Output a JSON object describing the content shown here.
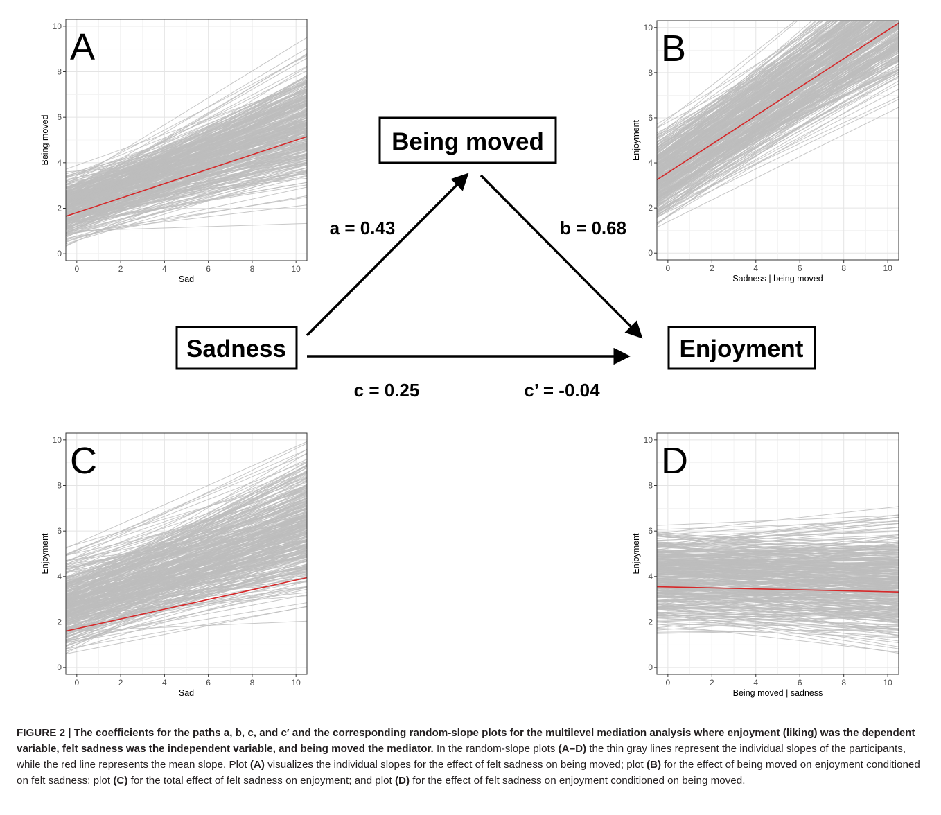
{
  "diagram": {
    "nodes": {
      "sadness": "Sadness",
      "being_moved": "Being moved",
      "enjoyment": "Enjoyment"
    },
    "paths": {
      "a": "a = 0.43",
      "b": "b = 0.68",
      "c": "c = 0.25",
      "c_prime": "c’ = -0.04"
    }
  },
  "chart_data": [
    {
      "panel": "A",
      "type": "line",
      "xlabel": "Sad",
      "ylabel": "Being moved",
      "xlim": [
        -0.5,
        10.5
      ],
      "ylim": [
        -0.3,
        10.3
      ],
      "xticks": [
        0,
        2,
        4,
        6,
        8,
        10
      ],
      "yticks": [
        0,
        2,
        4,
        6,
        8,
        10
      ],
      "grid": true,
      "mean_line": {
        "x": [
          -0.5,
          10.5
        ],
        "y": [
          1.65,
          5.15
        ],
        "color": "#d62728"
      },
      "individual_slopes": {
        "color": "#bdbdbd",
        "intercept_range": [
          0.2,
          4.0
        ],
        "slope_range": [
          -0.05,
          0.75
        ]
      }
    },
    {
      "panel": "B",
      "type": "line",
      "xlabel": "Sadness | being moved",
      "ylabel": "Enjoyment",
      "xlim": [
        -0.5,
        10.5
      ],
      "ylim": [
        -0.3,
        10.3
      ],
      "xticks": [
        0,
        2,
        4,
        6,
        8,
        10
      ],
      "yticks": [
        0,
        2,
        4,
        6,
        8,
        10
      ],
      "grid": true,
      "mean_line": {
        "x": [
          -0.5,
          10.5
        ],
        "y": [
          3.25,
          10.2
        ],
        "color": "#d62728"
      },
      "individual_slopes": {
        "color": "#bdbdbd",
        "intercept_range": [
          0.9,
          6.3
        ],
        "slope_range": [
          0.35,
          0.95
        ]
      }
    },
    {
      "panel": "C",
      "type": "line",
      "xlabel": "Sad",
      "ylabel": "Enjoyment",
      "xlim": [
        -0.5,
        10.5
      ],
      "ylim": [
        -0.3,
        10.3
      ],
      "xticks": [
        0,
        2,
        4,
        6,
        8,
        10
      ],
      "yticks": [
        0,
        2,
        4,
        6,
        8,
        10
      ],
      "grid": true,
      "mean_line": {
        "x": [
          -0.5,
          10.5
        ],
        "y": [
          1.6,
          3.95
        ],
        "color": "#d62728"
      },
      "individual_slopes": {
        "color": "#bdbdbd",
        "intercept_range": [
          0.0,
          5.8
        ],
        "slope_range": [
          -0.05,
          0.8
        ]
      }
    },
    {
      "panel": "D",
      "type": "line",
      "xlabel": "Being moved | sadness",
      "ylabel": "Enjoyment",
      "xlim": [
        -0.5,
        10.5
      ],
      "ylim": [
        -0.3,
        10.3
      ],
      "xticks": [
        0,
        2,
        4,
        6,
        8,
        10
      ],
      "yticks": [
        0,
        2,
        4,
        6,
        8,
        10
      ],
      "grid": true,
      "mean_line": {
        "x": [
          -0.5,
          10.5
        ],
        "y": [
          3.55,
          3.32
        ],
        "color": "#d62728"
      },
      "individual_slopes": {
        "color": "#bdbdbd",
        "intercept_range": [
          1.0,
          6.8
        ],
        "slope_range": [
          -0.28,
          0.22
        ]
      }
    }
  ],
  "caption": {
    "title": "FIGURE 2 | The coefficients for the paths a, b, c, and c′ and the corresponding random-slope plots for the multilevel mediation analysis where enjoyment (liking) was the dependent variable, felt sadness was the independent variable, and being moved the mediator.",
    "t1": " In the random-slope plots ",
    "r1": "(A–D)",
    "t2": " the thin gray lines represent the individual slopes of the participants, while the red line represents the mean slope. Plot ",
    "r2": "(A)",
    "t3": " visualizes the individual slopes for the effect of felt sadness on being moved; plot ",
    "r3": "(B)",
    "t4": " for the effect of being moved on enjoyment conditioned on felt sadness; plot ",
    "r4": "(C)",
    "t5": " for the total effect of felt sadness on enjoyment; and plot ",
    "r5": "(D)",
    "t6": " for the effect of felt sadness on enjoyment conditioned on being moved."
  }
}
